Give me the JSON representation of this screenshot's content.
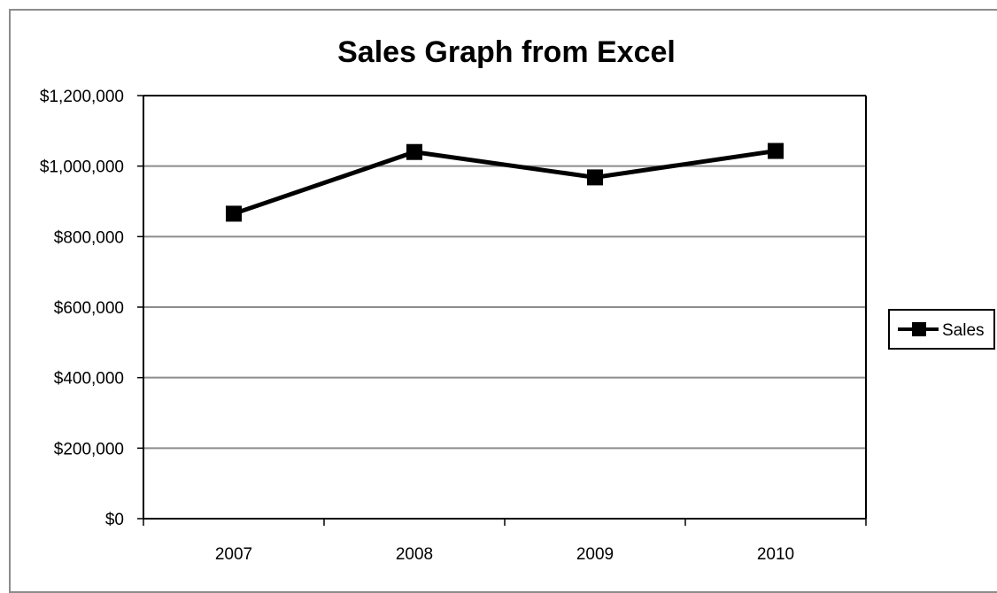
{
  "chart_data": {
    "type": "line",
    "title": "Sales Graph from Excel",
    "xlabel": "",
    "ylabel": "",
    "categories": [
      "2007",
      "2008",
      "2009",
      "2010"
    ],
    "series": [
      {
        "name": "Sales",
        "values": [
          865000,
          1040000,
          968000,
          1043000
        ]
      }
    ],
    "ylim": [
      0,
      1200000
    ],
    "yticks": [
      0,
      200000,
      400000,
      600000,
      800000,
      1000000,
      1200000
    ],
    "ytick_labels": [
      "$0",
      "$200,000",
      "$400,000",
      "$600,000",
      "$800,000",
      "$1,000,000",
      "$1,200,000"
    ],
    "grid": true,
    "legend_position": "right",
    "series_color": "#000000",
    "marker": "square"
  }
}
